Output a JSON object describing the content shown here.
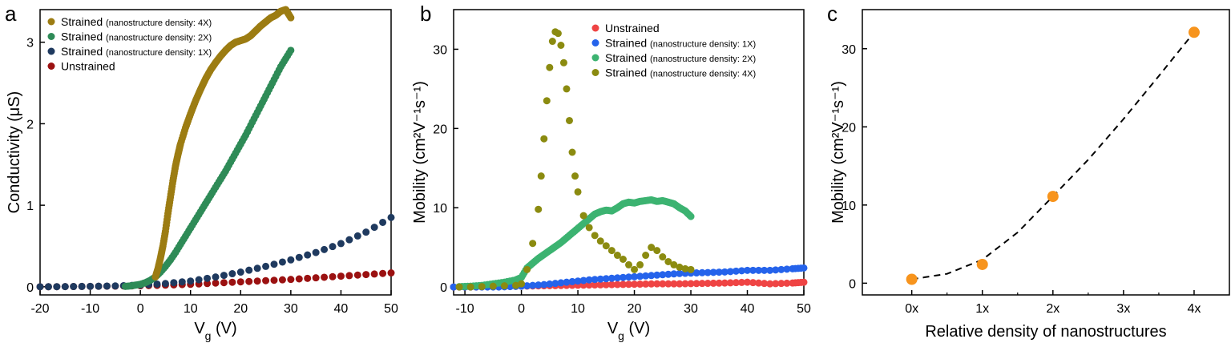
{
  "chart_data": [
    {
      "panel": "a",
      "type": "scatter",
      "xlabel": "V",
      "xlabel_sub": "g",
      "xlabel_unit": " (V)",
      "ylabel": "Conductivity (μS)",
      "xlim": [
        -20,
        50
      ],
      "ylim": [
        -0.1,
        3.4
      ],
      "xticks": [
        -20,
        -10,
        0,
        10,
        20,
        30,
        40,
        50
      ],
      "yticks": [
        0,
        1,
        2,
        3
      ],
      "legend_position": "top-left",
      "series": [
        {
          "name": "Strained",
          "note": "(nanostructure density: 4X)",
          "color": "#9c7c12",
          "x": [
            3,
            3.5,
            4,
            4.5,
            5,
            5.5,
            6,
            6.5,
            7,
            7.5,
            8,
            9,
            10,
            11,
            12,
            13,
            14,
            15,
            16,
            17,
            18,
            19,
            20,
            21,
            22,
            23,
            24,
            25,
            26,
            27,
            28,
            29,
            30
          ],
          "y": [
            0.12,
            0.22,
            0.35,
            0.5,
            0.68,
            0.9,
            1.1,
            1.3,
            1.48,
            1.62,
            1.75,
            1.95,
            2.12,
            2.28,
            2.42,
            2.55,
            2.66,
            2.75,
            2.83,
            2.9,
            2.96,
            3.0,
            3.02,
            3.04,
            3.08,
            3.14,
            3.2,
            3.25,
            3.3,
            3.33,
            3.38,
            3.4,
            3.3
          ]
        },
        {
          "name": "Strained",
          "note": "(nanostructure density: 2X)",
          "color": "#2e8b57",
          "x": [
            -3,
            -2,
            -1,
            0,
            1,
            2,
            3,
            4,
            5,
            6,
            7,
            8,
            9,
            10,
            11,
            12,
            13,
            14,
            15,
            16,
            17,
            18,
            19,
            20,
            21,
            22,
            23,
            24,
            25,
            26,
            27,
            28,
            29,
            30
          ],
          "y": [
            0.005,
            0.01,
            0.02,
            0.03,
            0.05,
            0.08,
            0.12,
            0.18,
            0.25,
            0.33,
            0.42,
            0.52,
            0.62,
            0.72,
            0.82,
            0.92,
            1.02,
            1.12,
            1.22,
            1.32,
            1.42,
            1.53,
            1.64,
            1.75,
            1.86,
            1.98,
            2.1,
            2.22,
            2.34,
            2.46,
            2.58,
            2.7,
            2.8,
            2.9
          ]
        },
        {
          "name": "Strained",
          "note": "(nanostructure density: 1X)",
          "color": "#1f3a5f",
          "x": [
            -20,
            -15,
            -10,
            -5,
            0,
            5,
            10,
            15,
            20,
            25,
            30,
            35,
            40,
            45,
            50
          ],
          "y": [
            0.0,
            0.002,
            0.005,
            0.01,
            0.02,
            0.04,
            0.07,
            0.12,
            0.18,
            0.25,
            0.33,
            0.42,
            0.53,
            0.67,
            0.85
          ]
        },
        {
          "name": "Unstrained",
          "note": "",
          "color": "#9b1111",
          "x": [
            -20,
            -15,
            -10,
            -5,
            0,
            5,
            10,
            15,
            20,
            25,
            30,
            35,
            40,
            45,
            50
          ],
          "y": [
            0.0,
            0.002,
            0.005,
            0.008,
            0.012,
            0.02,
            0.03,
            0.045,
            0.06,
            0.075,
            0.09,
            0.11,
            0.13,
            0.15,
            0.17
          ]
        }
      ]
    },
    {
      "panel": "b",
      "type": "scatter",
      "xlabel": "V",
      "xlabel_sub": "g",
      "xlabel_unit": " (V)",
      "ylabel": "Mobility (cm²V⁻¹s⁻¹)",
      "xlim": [
        -12,
        50
      ],
      "ylim": [
        -1,
        35
      ],
      "xticks": [
        -10,
        0,
        10,
        20,
        30,
        40,
        50
      ],
      "yticks": [
        0,
        10,
        20,
        30
      ],
      "legend_position": "top-right",
      "series": [
        {
          "name": "Unstrained",
          "note": "",
          "color": "#ef4444",
          "x": [
            -12,
            -8,
            -4,
            0,
            4,
            8,
            12,
            16,
            20,
            24,
            28,
            32,
            36,
            40,
            44,
            48,
            50
          ],
          "y": [
            0,
            0,
            0.05,
            0.1,
            0.15,
            0.2,
            0.25,
            0.3,
            0.35,
            0.4,
            0.4,
            0.45,
            0.5,
            0.6,
            0.4,
            0.5,
            0.6
          ]
        },
        {
          "name": "Strained",
          "note": "(nanostructure density: 1X)",
          "color": "#2563eb",
          "x": [
            -12,
            -8,
            -4,
            0,
            4,
            8,
            12,
            16,
            20,
            24,
            28,
            32,
            36,
            40,
            44,
            48,
            50
          ],
          "y": [
            0,
            0,
            0,
            0.1,
            0.3,
            0.6,
            0.9,
            1.1,
            1.3,
            1.5,
            1.7,
            1.8,
            1.9,
            2.1,
            2.1,
            2.3,
            2.4
          ]
        },
        {
          "name": "Strained",
          "note": "(nanostructure density: 2X)",
          "color": "#3cb371",
          "x": [
            -11,
            -9,
            -7,
            -5,
            -3,
            -1,
            0,
            1,
            2,
            3,
            4,
            5,
            6,
            7,
            8,
            9,
            10,
            11,
            12,
            13,
            14,
            15,
            16,
            17,
            18,
            19,
            20,
            21,
            22,
            23,
            24,
            25,
            26,
            27,
            28,
            29,
            30
          ],
          "y": [
            0.05,
            0.1,
            0.2,
            0.4,
            0.6,
            0.9,
            1.2,
            2.4,
            3.0,
            3.6,
            4.1,
            4.6,
            5.1,
            5.6,
            6.2,
            6.8,
            7.4,
            8.0,
            8.6,
            9.2,
            9.5,
            9.7,
            9.6,
            10.0,
            10.5,
            10.7,
            10.6,
            10.8,
            10.9,
            11.0,
            10.8,
            10.9,
            10.7,
            10.5,
            10.0,
            9.6,
            8.9
          ]
        },
        {
          "name": "Strained",
          "note": "(nanostructure density: 4X)",
          "color": "#8b8b10",
          "x": [
            -11,
            -9,
            -7,
            -5,
            -3,
            -1,
            0,
            1,
            2,
            3,
            3.5,
            4,
            4.5,
            5,
            5.5,
            6,
            6.5,
            7,
            7.5,
            8,
            8.5,
            9,
            9.5,
            10,
            11,
            12,
            13,
            14,
            15,
            16,
            17,
            18,
            19,
            20,
            21,
            22,
            23,
            24,
            25,
            26,
            27,
            28,
            29,
            30
          ],
          "y": [
            0,
            0,
            0.05,
            0.1,
            0.15,
            0.2,
            0.4,
            2.2,
            5.5,
            9.8,
            14.0,
            18.7,
            23.5,
            27.7,
            31.0,
            32.2,
            32.0,
            30.5,
            28.3,
            25.0,
            21.0,
            17.0,
            14.0,
            12.0,
            9.0,
            7.5,
            6.5,
            5.8,
            5.2,
            4.6,
            4.0,
            3.5,
            2.8,
            2.2,
            2.8,
            4.0,
            5.0,
            4.6,
            3.8,
            3.2,
            2.8,
            2.5,
            2.3,
            2.2
          ]
        }
      ]
    },
    {
      "panel": "c",
      "type": "scatter",
      "xlabel": "Relative density of nanostructures",
      "ylabel": "Mobility (cm²V⁻¹s⁻¹)",
      "xlim": [
        -0.7,
        4.5
      ],
      "ylim": [
        -1.5,
        35
      ],
      "categories": [
        "0x",
        "1x",
        "2x",
        "3x",
        "4x"
      ],
      "yticks": [
        0,
        10,
        20,
        30
      ],
      "points": {
        "x": [
          0,
          1,
          2,
          4
        ],
        "y": [
          0.5,
          2.4,
          11.1,
          32.1
        ],
        "color": "#f7941d"
      },
      "fit": {
        "style": "dashed",
        "color": "#000000",
        "x": [
          0,
          0.5,
          1,
          1.5,
          2,
          2.5,
          3,
          3.5,
          4
        ],
        "y": [
          0.5,
          1.2,
          3.0,
          6.5,
          11.1,
          15.8,
          21.0,
          26.5,
          32.1
        ]
      }
    }
  ]
}
